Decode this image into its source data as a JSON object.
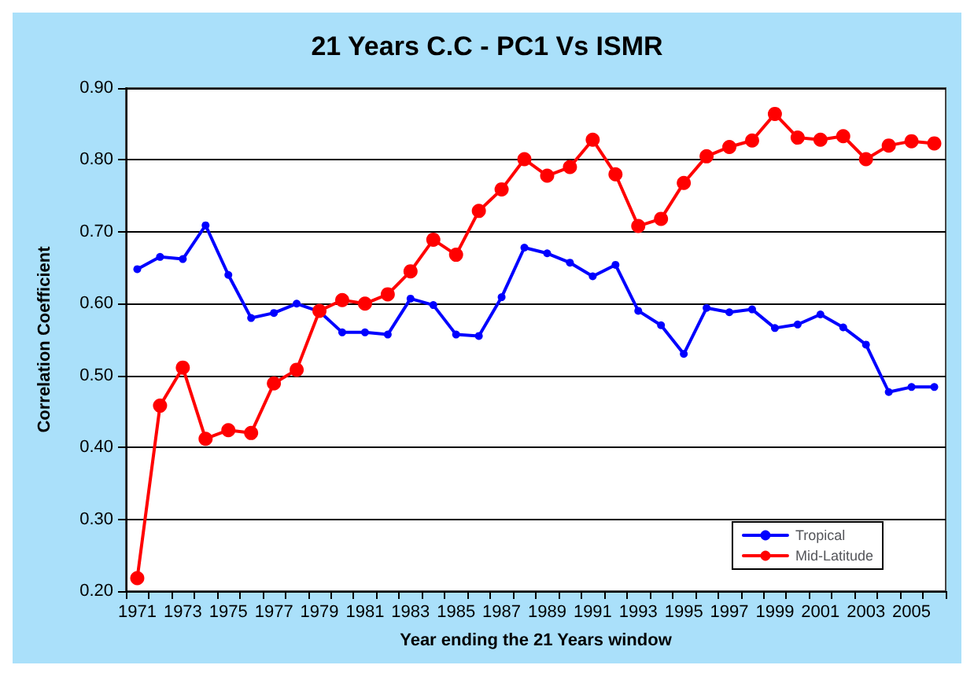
{
  "chart_data": {
    "type": "line",
    "title": "21 Years C.C - PC1 Vs ISMR",
    "xlabel": "Year ending the 21 Years window",
    "ylabel": "Correlation Coefficient",
    "categories": [
      "1971",
      null,
      "1973",
      null,
      "1975",
      null,
      "1977",
      null,
      "1979",
      null,
      "1981",
      null,
      "1983",
      null,
      "1985",
      null,
      "1987",
      null,
      "1989",
      null,
      "1991",
      null,
      "1993",
      null,
      "1995",
      null,
      "1997",
      null,
      "1999",
      null,
      "2001",
      null,
      "2003",
      null,
      "2005",
      null
    ],
    "series": [
      {
        "name": "Tropical",
        "color": "#0000ff",
        "marker": "circle",
        "values": [
          0.648,
          0.665,
          0.662,
          0.709,
          0.64,
          0.58,
          0.587,
          0.6,
          0.589,
          0.56,
          0.56,
          0.557,
          0.607,
          0.598,
          0.557,
          0.555,
          0.609,
          0.678,
          0.67,
          0.657,
          0.638,
          0.654,
          0.59,
          0.57,
          0.53,
          0.594,
          0.588,
          0.592,
          0.566,
          0.571,
          0.585,
          0.567,
          0.543,
          0.477,
          0.484,
          0.484
        ]
      },
      {
        "name": "Mid-Latitude",
        "color": "#ff0000",
        "marker": "circle",
        "values": [
          0.218,
          0.458,
          0.511,
          0.412,
          0.424,
          0.42,
          0.489,
          0.508,
          0.59,
          0.605,
          0.6,
          0.613,
          0.645,
          0.689,
          0.668,
          0.729,
          0.759,
          0.801,
          0.778,
          0.79,
          0.828,
          0.78,
          0.708,
          0.718,
          0.768,
          0.805,
          0.818,
          0.827,
          0.864,
          0.831,
          0.828,
          0.833,
          0.801,
          0.82,
          0.826,
          0.823
        ]
      }
    ],
    "ylim": [
      0.2,
      0.9
    ],
    "yticks": [
      {
        "value": 0.2,
        "label": "0.20"
      },
      {
        "value": 0.3,
        "label": "0.30"
      },
      {
        "value": 0.4,
        "label": "0.40"
      },
      {
        "value": 0.5,
        "label": "0.50"
      },
      {
        "value": 0.6,
        "label": "0.60"
      },
      {
        "value": 0.7,
        "label": "0.70"
      },
      {
        "value": 0.8,
        "label": "0.80"
      },
      {
        "value": 0.9,
        "label": "0.90"
      }
    ],
    "grid": "y",
    "legend": "bottom right",
    "line_style": "solid"
  }
}
